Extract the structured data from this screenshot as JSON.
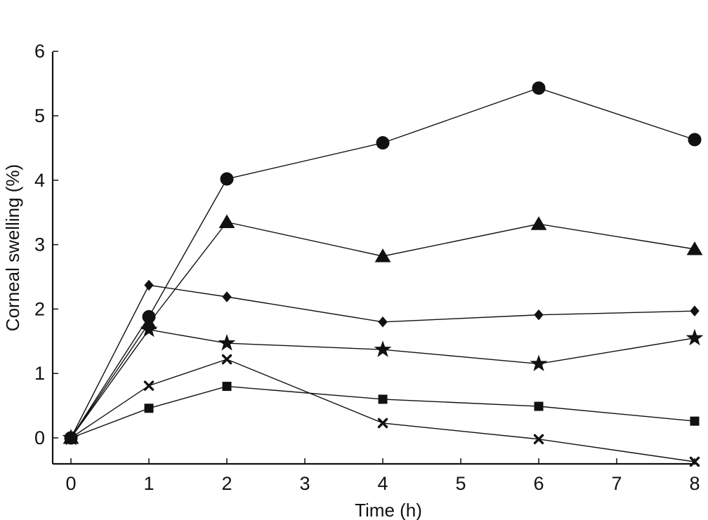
{
  "chart_data": {
    "type": "line",
    "title": "",
    "xlabel": "Time (h)",
    "ylabel": "Corneal swelling (%)",
    "xlim": [
      0,
      8
    ],
    "ylim": [
      -0.4,
      6
    ],
    "x_ticks": [
      0,
      1,
      2,
      3,
      4,
      5,
      6,
      7,
      8
    ],
    "y_ticks": [
      0,
      1,
      2,
      3,
      4,
      5,
      6
    ],
    "x_tick_labels": [
      "0",
      "1",
      "2",
      "3",
      "4",
      "5",
      "6",
      "7",
      "8"
    ],
    "y_tick_labels": [
      "0",
      "1",
      "2",
      "3",
      "4",
      "5",
      "6"
    ],
    "grid": false,
    "legend": false,
    "x": [
      0,
      1,
      2,
      4,
      6,
      8
    ],
    "series": [
      {
        "marker": "circle",
        "values": [
          0,
          1.88,
          4.02,
          4.58,
          5.43,
          4.63
        ]
      },
      {
        "marker": "triangle",
        "values": [
          0,
          1.78,
          3.35,
          2.82,
          3.32,
          2.93
        ]
      },
      {
        "marker": "diamond",
        "values": [
          0,
          2.37,
          2.19,
          1.8,
          1.91,
          1.97
        ]
      },
      {
        "marker": "star",
        "values": [
          0,
          1.68,
          1.47,
          1.37,
          1.15,
          1.55
        ]
      },
      {
        "marker": "x",
        "values": [
          0,
          0.81,
          1.22,
          0.23,
          -0.02,
          -0.37
        ]
      },
      {
        "marker": "square",
        "values": [
          0,
          0.46,
          0.8,
          0.6,
          0.49,
          0.26
        ]
      }
    ]
  }
}
